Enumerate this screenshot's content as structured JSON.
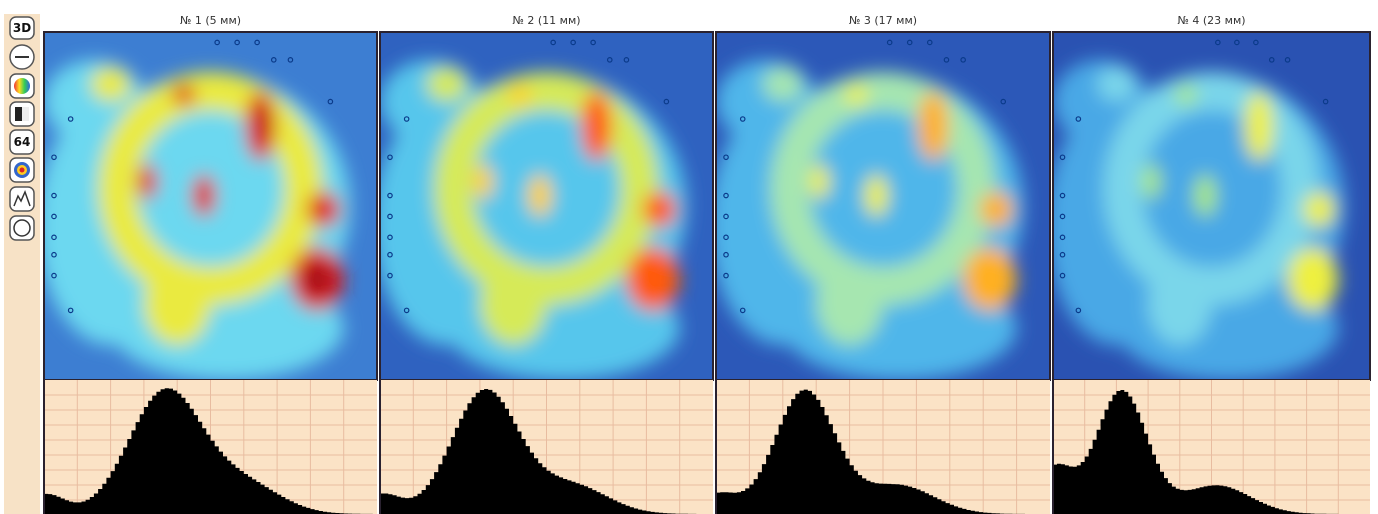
{
  "toolbar": {
    "labels": [
      "3D",
      "64"
    ]
  },
  "panels": [
    {
      "title": "№ 1 (5 мм)"
    },
    {
      "title": "№ 2 (11 мм)"
    },
    {
      "title": "№ 3 (17 мм)"
    },
    {
      "title": "№ 4 (23 мм)"
    }
  ]
}
